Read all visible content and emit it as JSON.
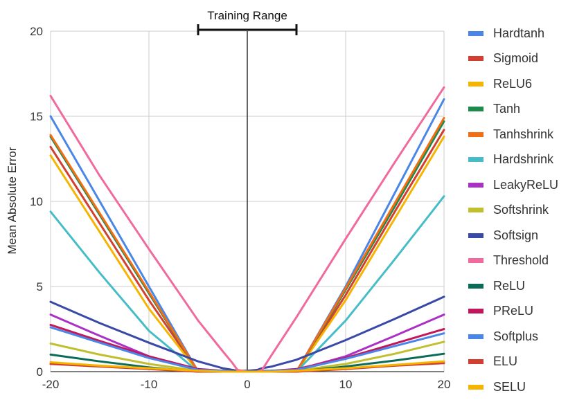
{
  "chart_data": {
    "type": "line",
    "title": "",
    "xlabel": "",
    "ylabel": "Mean Absolute Error",
    "xlim": [
      -20,
      20
    ],
    "ylim": [
      0,
      20
    ],
    "xticks": [
      "-20",
      "-10",
      "0",
      "10",
      "20"
    ],
    "yticks": [
      "0",
      "5",
      "10",
      "15",
      "20"
    ],
    "grid": true,
    "legend_position": "right",
    "annotation": {
      "text": "Training Range",
      "x_range": [
        -5,
        5
      ]
    },
    "x": [
      -20,
      -15,
      -10,
      -5,
      -2.5,
      -1.5,
      -1,
      0,
      1,
      1.5,
      2.5,
      5,
      10,
      15,
      20
    ],
    "series": [
      {
        "name": "Hardtanh",
        "color": "#4a86e8",
        "values": [
          15.0,
          10.0,
          5.0,
          0.0,
          0.05,
          0.05,
          0.05,
          0.05,
          0.05,
          0.05,
          0.05,
          0.0,
          5.0,
          10.5,
          16.0
        ]
      },
      {
        "name": "Sigmoid",
        "color": "#d23f31",
        "values": [
          13.2,
          8.7,
          4.2,
          0.0,
          0.0,
          0.0,
          0.0,
          0.0,
          0.0,
          0.0,
          0.0,
          0.0,
          4.5,
          9.4,
          14.2
        ]
      },
      {
        "name": "ReLU6",
        "color": "#f4b400",
        "values": [
          12.7,
          8.2,
          3.7,
          0.0,
          0.0,
          0.0,
          0.0,
          0.0,
          0.0,
          0.0,
          0.0,
          0.0,
          4.2,
          9.0,
          13.8
        ]
      },
      {
        "name": "Tanh",
        "color": "#1e8a4c",
        "values": [
          13.8,
          9.2,
          4.6,
          0.0,
          0.0,
          0.0,
          0.0,
          0.0,
          0.0,
          0.0,
          0.0,
          0.0,
          4.8,
          9.7,
          14.7
        ]
      },
      {
        "name": "Tanhshrink",
        "color": "#f46d13",
        "values": [
          13.9,
          9.3,
          4.7,
          0.0,
          0.0,
          0.0,
          0.0,
          0.0,
          0.0,
          0.0,
          0.0,
          0.0,
          4.9,
          9.9,
          14.9
        ]
      },
      {
        "name": "Hardshrink",
        "color": "#46bdc6",
        "values": [
          9.4,
          5.8,
          2.4,
          0.0,
          0.0,
          0.0,
          0.0,
          0.0,
          0.0,
          0.0,
          0.0,
          0.0,
          3.0,
          6.6,
          10.3
        ]
      },
      {
        "name": "LeakyReLU",
        "color": "#ab30c4",
        "values": [
          3.35,
          2.1,
          0.9,
          0.1,
          0.05,
          0.0,
          0.0,
          0.0,
          0.0,
          0.0,
          0.05,
          0.1,
          0.9,
          2.1,
          3.35
        ]
      },
      {
        "name": "Softshrink",
        "color": "#c0bf2e",
        "values": [
          1.65,
          1.0,
          0.45,
          0.05,
          0.0,
          0.0,
          0.0,
          0.0,
          0.0,
          0.0,
          0.0,
          0.05,
          0.45,
          1.05,
          1.75
        ]
      },
      {
        "name": "Softsign",
        "color": "#3949a8",
        "values": [
          4.1,
          2.85,
          1.7,
          0.6,
          0.2,
          0.1,
          0.05,
          0.05,
          0.1,
          0.2,
          0.3,
          0.7,
          1.85,
          3.1,
          4.4
        ]
      },
      {
        "name": "Threshold",
        "color": "#f06a9e",
        "values": [
          16.2,
          11.5,
          7.2,
          3.0,
          1.2,
          0.5,
          0.1,
          0.0,
          0.0,
          0.1,
          1.0,
          3.2,
          7.8,
          12.3,
          16.7
        ]
      },
      {
        "name": "ReLU",
        "color": "#0b6b57",
        "values": [
          1.0,
          0.6,
          0.25,
          0.0,
          0.0,
          0.0,
          0.0,
          0.0,
          0.0,
          0.0,
          0.0,
          0.0,
          0.3,
          0.65,
          1.05
        ]
      },
      {
        "name": "PReLU",
        "color": "#c2185b",
        "values": [
          2.75,
          1.8,
          0.9,
          0.15,
          0.05,
          0.0,
          0.0,
          0.0,
          0.0,
          0.0,
          0.05,
          0.15,
          0.8,
          1.65,
          2.5
        ]
      },
      {
        "name": "Softplus",
        "color": "#4a86e8",
        "values": [
          2.6,
          1.7,
          0.8,
          0.1,
          0.05,
          0.0,
          0.0,
          0.0,
          0.0,
          0.0,
          0.05,
          0.1,
          0.75,
          1.5,
          2.25
        ]
      },
      {
        "name": "ELU",
        "color": "#d23f31",
        "values": [
          0.45,
          0.3,
          0.15,
          0.0,
          0.0,
          0.0,
          0.0,
          0.0,
          0.0,
          0.0,
          0.0,
          0.0,
          0.15,
          0.35,
          0.5
        ]
      },
      {
        "name": "SELU",
        "color": "#f4b400",
        "values": [
          0.55,
          0.35,
          0.2,
          0.05,
          0.0,
          0.0,
          0.0,
          0.0,
          0.0,
          0.0,
          0.0,
          0.05,
          0.2,
          0.4,
          0.6
        ]
      }
    ]
  }
}
